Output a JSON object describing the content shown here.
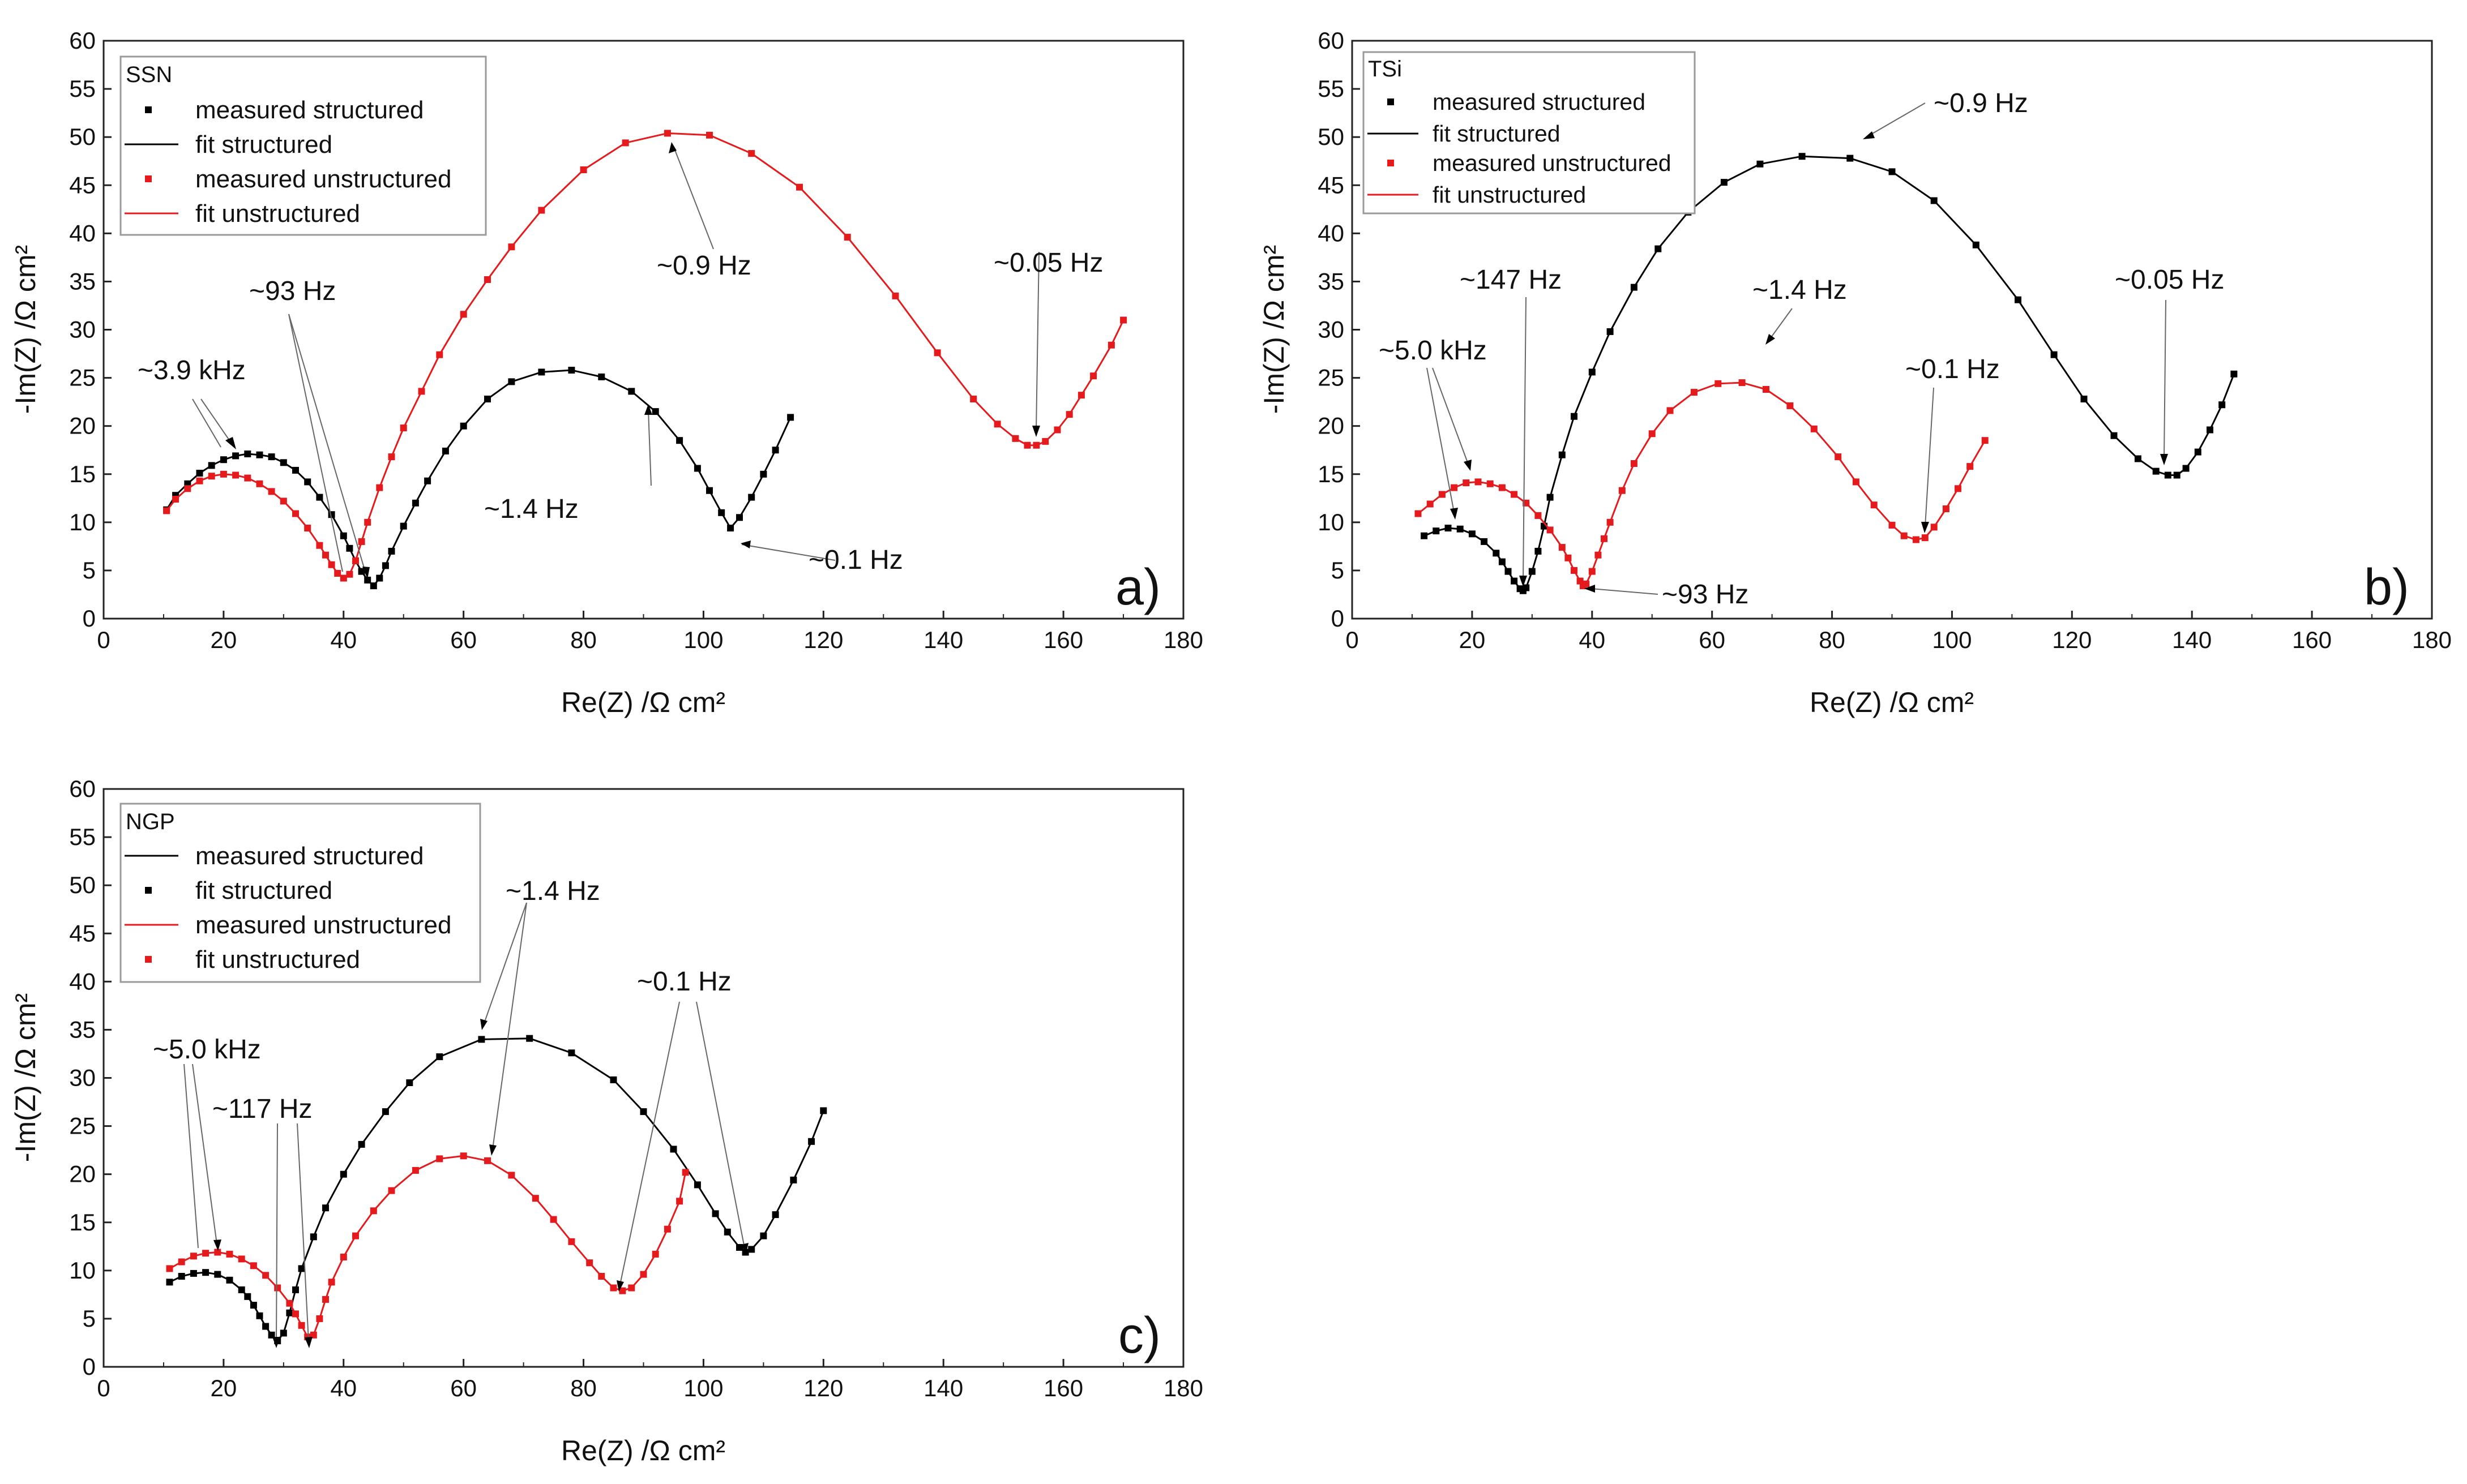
{
  "chart_data": [
    {
      "type": "scatter",
      "panel_label": "a)",
      "legend_title": "SSN",
      "legend": [
        {
          "label": "measured structured",
          "style": "marker",
          "color": "#000000"
        },
        {
          "label": "fit structured",
          "style": "line",
          "color": "#000000"
        },
        {
          "label": "measured unstructured",
          "style": "marker",
          "color": "#e41a1c"
        },
        {
          "label": "fit unstructured",
          "style": "line",
          "color": "#e41a1c"
        }
      ],
      "xlabel": "Re(Z) /Ω cm²",
      "ylabel": "-Im(Z) /Ω cm²",
      "xlim": [
        0,
        180
      ],
      "ylim": [
        0,
        60
      ],
      "xticks": [
        "0",
        "20",
        "40",
        "60",
        "80",
        "100",
        "120",
        "140",
        "160",
        "180"
      ],
      "yticks": [
        "0",
        "5",
        "10",
        "15",
        "20",
        "25",
        "30",
        "35",
        "40",
        "45",
        "50",
        "55",
        "60"
      ],
      "series": [
        {
          "name": "structured",
          "color": "#000000",
          "x": [
            10.5,
            12,
            14,
            16,
            18,
            20,
            22,
            24,
            26,
            28,
            30,
            32,
            34,
            36,
            38,
            40,
            41,
            42,
            43,
            44,
            45,
            46,
            47,
            48,
            50,
            52,
            54,
            57,
            60,
            64,
            68,
            73,
            78,
            83,
            88,
            92,
            96,
            99,
            101,
            103,
            104.5,
            106,
            108,
            110,
            112,
            114.5
          ],
          "y": [
            11.3,
            12.8,
            14.0,
            15.1,
            15.9,
            16.5,
            16.9,
            17.1,
            17.0,
            16.8,
            16.2,
            15.4,
            14.2,
            12.6,
            10.8,
            8.6,
            7.3,
            6.0,
            4.9,
            4.0,
            3.4,
            4.2,
            5.5,
            7.0,
            9.6,
            12.0,
            14.3,
            17.4,
            20.0,
            22.8,
            24.6,
            25.6,
            25.8,
            25.1,
            23.6,
            21.5,
            18.5,
            15.6,
            13.3,
            11.0,
            9.4,
            10.5,
            12.6,
            15.0,
            17.5,
            20.9
          ]
        },
        {
          "name": "unstructured",
          "color": "#e41a1c",
          "x": [
            10.5,
            12,
            14,
            16,
            18,
            20,
            22,
            24,
            26,
            28,
            30,
            32,
            34,
            36,
            37,
            38,
            39,
            40,
            41,
            42,
            43,
            44,
            46,
            48,
            50,
            53,
            56,
            60,
            64,
            68,
            73,
            80,
            87,
            94,
            101,
            108,
            116,
            124,
            132,
            139,
            145,
            149,
            152,
            154,
            155.5,
            157,
            159,
            161,
            163,
            165,
            168,
            170
          ],
          "y": [
            11.2,
            12.4,
            13.5,
            14.3,
            14.8,
            15.0,
            14.9,
            14.6,
            14.0,
            13.2,
            12.2,
            10.9,
            9.4,
            7.6,
            6.6,
            5.6,
            4.7,
            4.2,
            4.6,
            6.0,
            8.0,
            10.0,
            13.6,
            16.8,
            19.8,
            23.6,
            27.4,
            31.6,
            35.2,
            38.6,
            42.4,
            46.6,
            49.4,
            50.4,
            50.2,
            48.3,
            44.8,
            39.6,
            33.5,
            27.6,
            22.8,
            20.2,
            18.7,
            18.0,
            18.0,
            18.4,
            19.6,
            21.2,
            23.2,
            25.2,
            28.4,
            31.0
          ]
        }
      ],
      "annotations": [
        "~3.9 kHz",
        "~93 Hz",
        "~1.4 Hz",
        "~0.1 Hz",
        "~0.9 Hz",
        "~0.05 Hz"
      ]
    },
    {
      "type": "scatter",
      "panel_label": "b)",
      "legend_title": "TSi",
      "legend": [
        {
          "label": "measured structured",
          "style": "marker",
          "color": "#000000"
        },
        {
          "label": "fit structured",
          "style": "line",
          "color": "#000000"
        },
        {
          "label": "measured unstructured",
          "style": "marker",
          "color": "#e41a1c"
        },
        {
          "label": "fit unstructured",
          "style": "line",
          "color": "#e41a1c"
        }
      ],
      "xlabel": "Re(Z) /Ω cm²",
      "ylabel": "-Im(Z) /Ω cm²",
      "xlim": [
        0,
        180
      ],
      "ylim": [
        0,
        60
      ],
      "xticks": [
        "0",
        "20",
        "40",
        "60",
        "80",
        "100",
        "120",
        "140",
        "160",
        "180"
      ],
      "yticks": [
        "0",
        "5",
        "10",
        "15",
        "20",
        "25",
        "30",
        "35",
        "40",
        "45",
        "50",
        "55",
        "60"
      ],
      "series": [
        {
          "name": "structured",
          "color": "#000000",
          "x": [
            12,
            14,
            16,
            18,
            20,
            22,
            24,
            25,
            26,
            27,
            28,
            28.5,
            29,
            30,
            31,
            32,
            33,
            35,
            37,
            40,
            43,
            47,
            51,
            56,
            62,
            68,
            75,
            83,
            90,
            97,
            104,
            111,
            117,
            122,
            127,
            131,
            134,
            136,
            137.5,
            139,
            141,
            143,
            145,
            147
          ],
          "y": [
            8.6,
            9.1,
            9.4,
            9.3,
            8.8,
            8.0,
            6.8,
            5.9,
            4.9,
            3.9,
            3.1,
            2.9,
            3.2,
            4.9,
            7.0,
            9.6,
            12.6,
            17.0,
            21.0,
            25.6,
            29.8,
            34.4,
            38.4,
            42.2,
            45.3,
            47.2,
            48.0,
            47.8,
            46.4,
            43.4,
            38.8,
            33.1,
            27.4,
            22.8,
            19.0,
            16.6,
            15.3,
            14.9,
            14.9,
            15.6,
            17.3,
            19.6,
            22.2,
            25.4
          ]
        },
        {
          "name": "unstructured",
          "color": "#e41a1c",
          "x": [
            11,
            13,
            15,
            17,
            19,
            21,
            23,
            25,
            27,
            29,
            31,
            33,
            35,
            36,
            37,
            38,
            38.5,
            39,
            40,
            41,
            42,
            43,
            45,
            47,
            50,
            53,
            57,
            61,
            65,
            69,
            73,
            77,
            81,
            84,
            87,
            90,
            92,
            94,
            95.5,
            97,
            99,
            101,
            103,
            105.5
          ],
          "y": [
            10.9,
            11.9,
            12.9,
            13.6,
            14.1,
            14.2,
            14.0,
            13.6,
            12.9,
            12.0,
            10.7,
            9.2,
            7.4,
            6.3,
            5.0,
            3.9,
            3.4,
            3.6,
            4.9,
            6.6,
            8.3,
            10.0,
            13.3,
            16.1,
            19.2,
            21.6,
            23.5,
            24.4,
            24.5,
            23.8,
            22.1,
            19.7,
            16.8,
            14.2,
            11.8,
            9.7,
            8.6,
            8.2,
            8.4,
            9.5,
            11.4,
            13.5,
            15.8,
            18.5
          ]
        }
      ],
      "annotations": [
        "~0.9 Hz",
        "~147 Hz",
        "~1.4 Hz",
        "~0.05 Hz",
        "~5.0 kHz",
        "~0.1 Hz",
        "~93 Hz"
      ]
    },
    {
      "type": "scatter",
      "panel_label": "c)",
      "legend_title": "NGP",
      "legend": [
        {
          "label": "measured structured",
          "style": "line",
          "color": "#000000"
        },
        {
          "label": "fit structured",
          "style": "marker",
          "color": "#000000"
        },
        {
          "label": "measured unstructured",
          "style": "line",
          "color": "#e41a1c"
        },
        {
          "label": "fit unstructured",
          "style": "marker",
          "color": "#e41a1c"
        }
      ],
      "xlabel": "Re(Z) /Ω cm²",
      "ylabel": "-Im(Z) /Ω cm²",
      "xlim": [
        0,
        180
      ],
      "ylim": [
        0,
        60
      ],
      "xticks": [
        "0",
        "20",
        "40",
        "60",
        "80",
        "100",
        "120",
        "140",
        "160",
        "180"
      ],
      "yticks": [
        "0",
        "5",
        "10",
        "15",
        "20",
        "25",
        "30",
        "35",
        "40",
        "45",
        "50",
        "55",
        "60"
      ],
      "series": [
        {
          "name": "structured",
          "color": "#000000",
          "x": [
            11,
            13,
            15,
            17,
            19,
            21,
            23,
            24,
            25,
            26,
            27,
            28,
            29,
            30,
            31,
            32,
            33,
            35,
            37,
            40,
            43,
            47,
            51,
            56,
            63,
            71,
            78,
            85,
            90,
            95,
            99,
            102,
            104,
            106,
            107,
            108,
            110,
            112,
            115,
            118,
            120
          ],
          "y": [
            8.8,
            9.4,
            9.7,
            9.8,
            9.6,
            9.0,
            8.0,
            7.3,
            6.4,
            5.3,
            4.2,
            3.3,
            2.7,
            3.5,
            5.6,
            8.0,
            10.2,
            13.5,
            16.5,
            20.0,
            23.1,
            26.5,
            29.5,
            32.2,
            34.0,
            34.1,
            32.6,
            29.8,
            26.5,
            22.6,
            18.9,
            15.9,
            14.0,
            12.4,
            11.9,
            12.2,
            13.6,
            15.8,
            19.4,
            23.4,
            26.6
          ]
        },
        {
          "name": "unstructured",
          "color": "#e41a1c",
          "x": [
            11,
            13,
            15,
            17,
            19,
            21,
            23,
            25,
            27,
            29,
            31,
            32,
            33,
            34,
            35,
            36,
            37,
            38,
            40,
            42,
            45,
            48,
            52,
            56,
            60,
            64,
            68,
            72,
            75,
            78,
            81,
            83,
            85,
            86.5,
            88,
            90,
            92,
            94,
            96,
            97
          ],
          "y": [
            10.2,
            10.9,
            11.5,
            11.8,
            11.9,
            11.7,
            11.2,
            10.5,
            9.5,
            8.2,
            6.6,
            5.5,
            4.3,
            3.1,
            3.3,
            5.0,
            7.0,
            8.8,
            11.4,
            13.6,
            16.2,
            18.3,
            20.4,
            21.6,
            21.9,
            21.4,
            19.9,
            17.5,
            15.3,
            13.0,
            10.8,
            9.4,
            8.2,
            7.9,
            8.2,
            9.6,
            11.7,
            14.3,
            17.2,
            20.2
          ]
        }
      ],
      "annotations": [
        "~1.4 Hz",
        "~0.1 Hz",
        "~5.0 kHz",
        "~117 Hz"
      ]
    }
  ]
}
